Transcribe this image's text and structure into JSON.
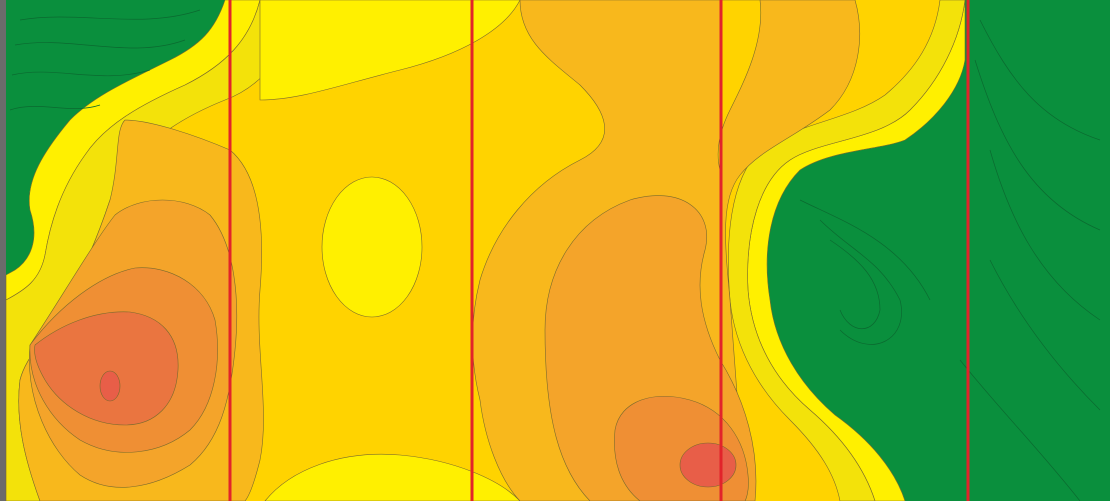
{
  "map": {
    "kind": "contour-heatmap",
    "palette": {
      "frame": "#6b6b6b",
      "green": "#0a8f3d",
      "green_contour": "#0b6a30",
      "yellow_light": "#f3e20a",
      "yellow": "#fff000",
      "gold": "#ffd300",
      "amber": "#f8b81c",
      "orange_light": "#f4a42a",
      "orange": "#ef8f34",
      "orange_dark": "#ea7540",
      "red_core": "#e85e48",
      "divider": "#e2232a",
      "contour_line": "#7a6a2c"
    },
    "dividers": [
      "divider-1",
      "divider-2",
      "divider-3",
      "divider-4"
    ],
    "legend": []
  }
}
